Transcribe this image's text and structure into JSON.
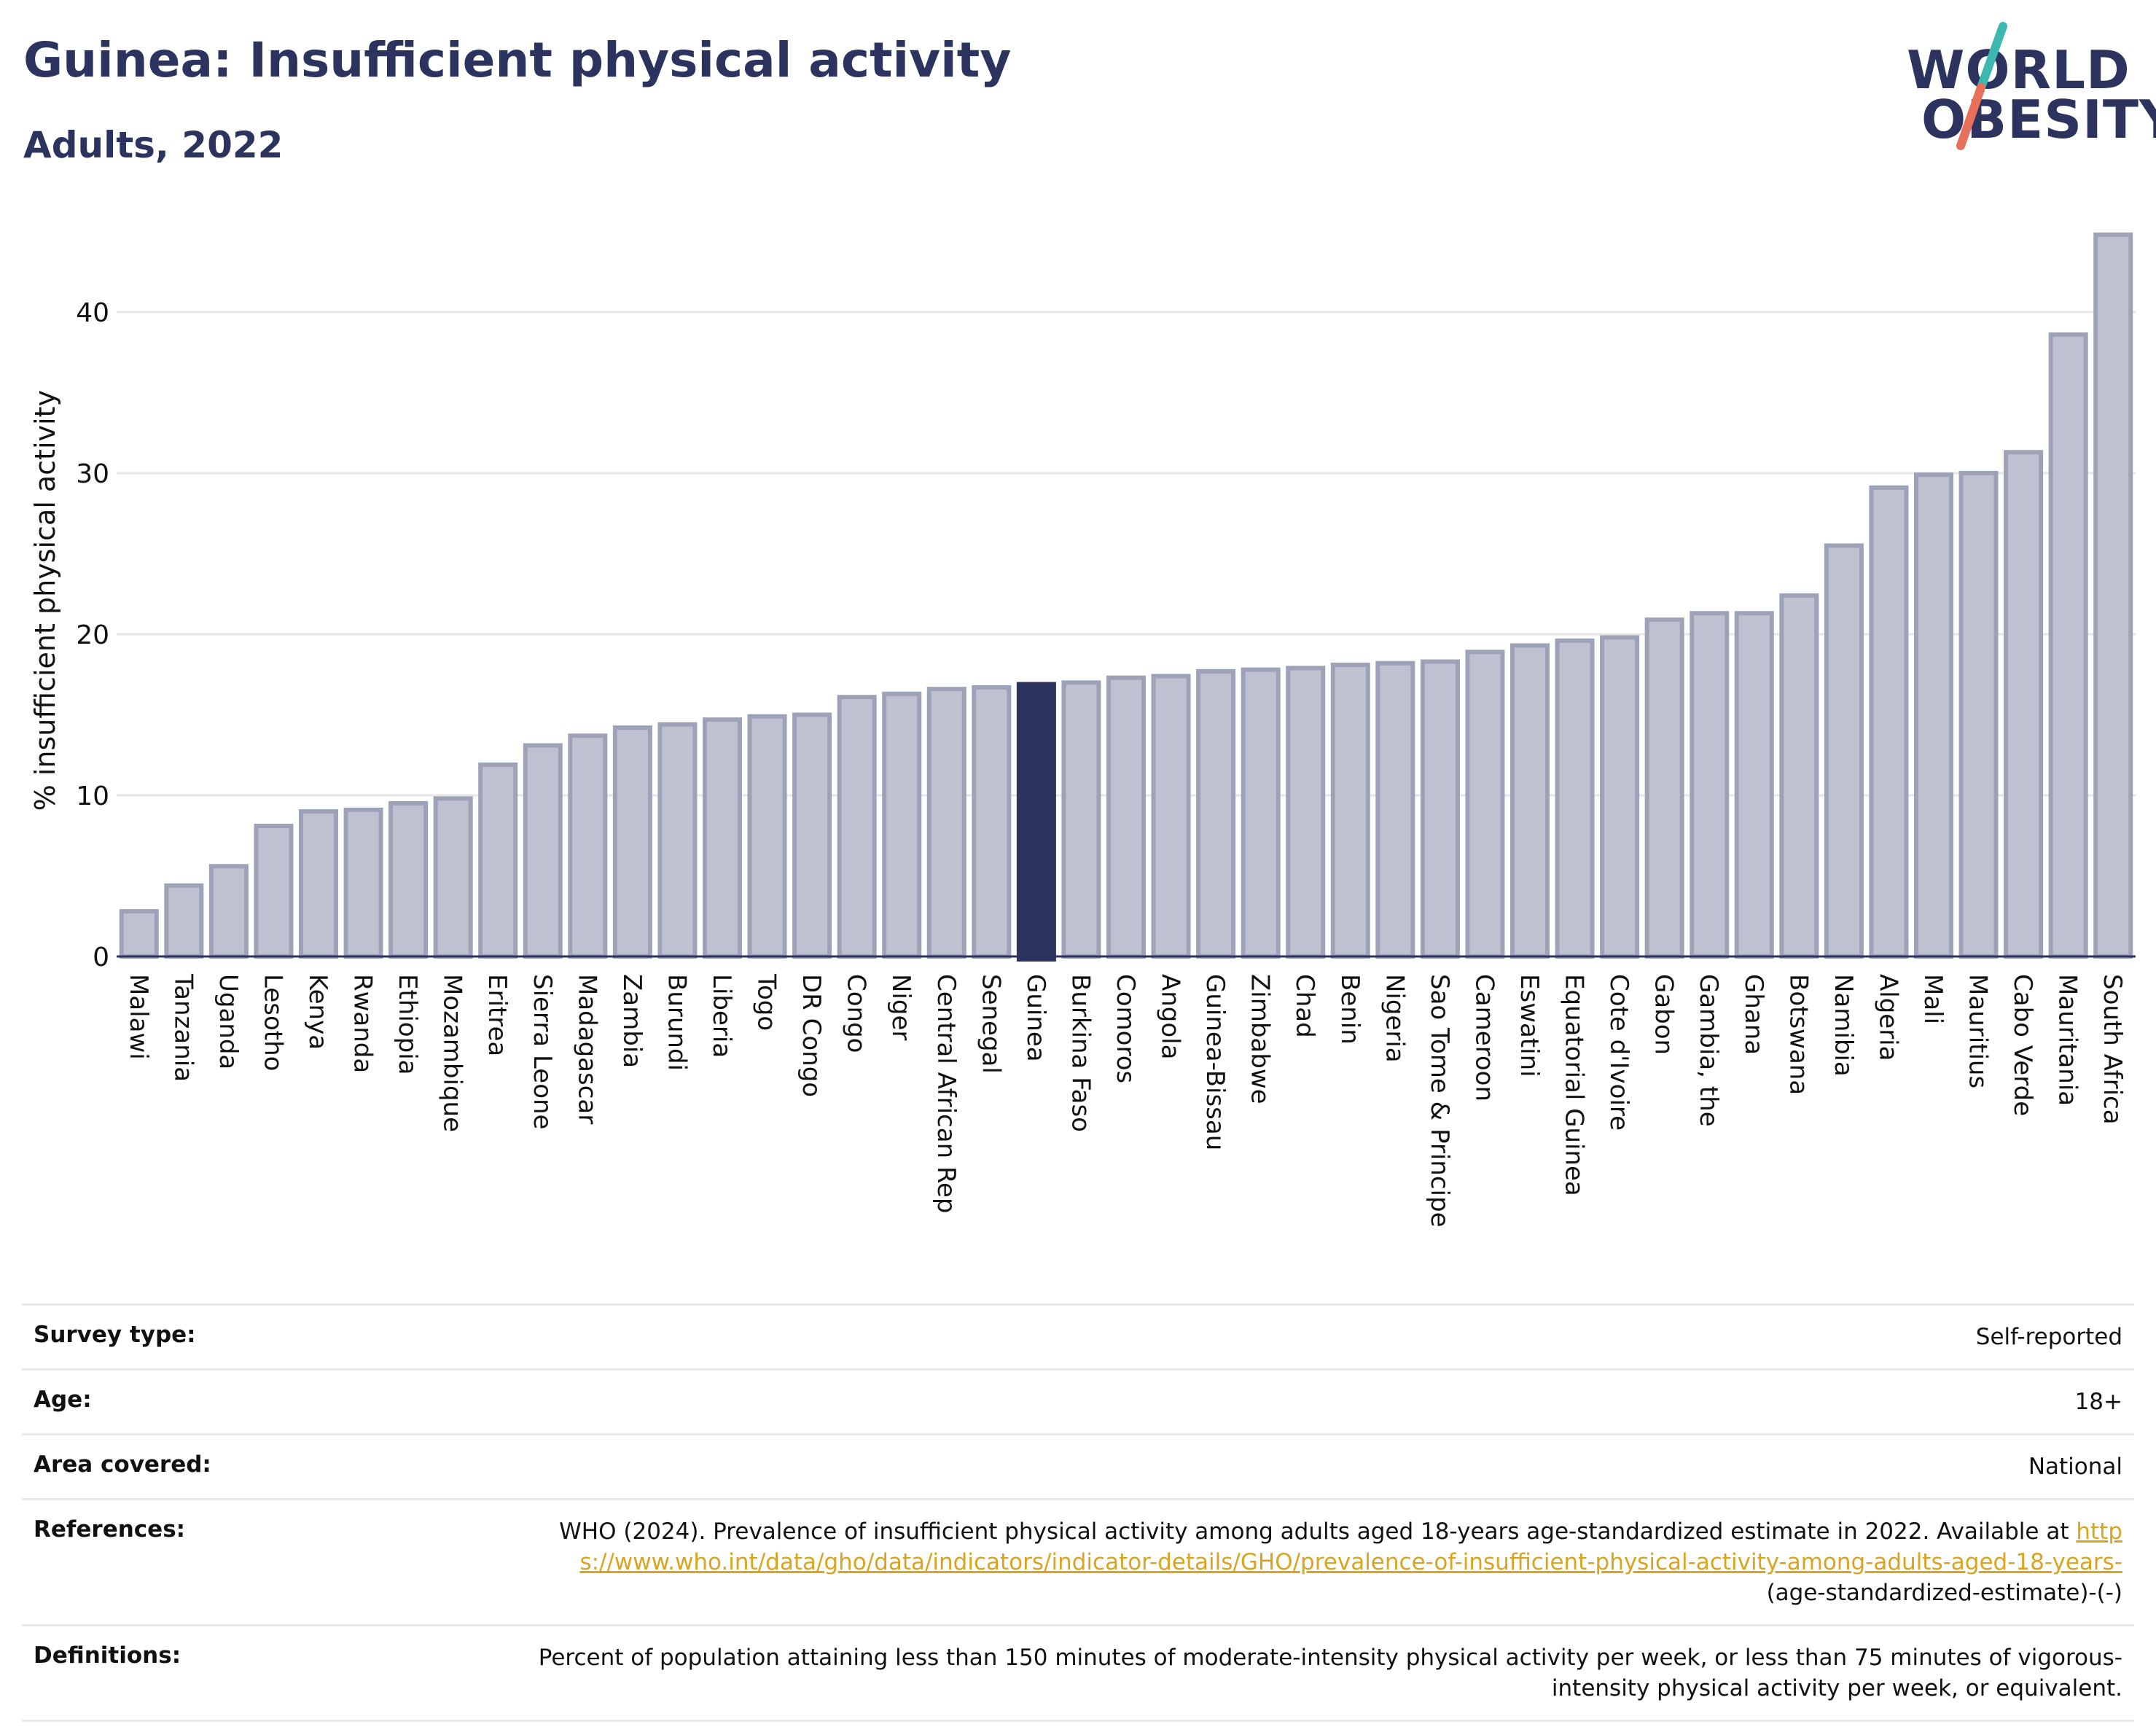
{
  "header": {
    "title": "Guinea: Insufficient physical activity",
    "subtitle": "Adults, 2022"
  },
  "logo": {
    "line1": "WORLD",
    "line2": "OBESITY",
    "accent_teal": "#3cb8b0",
    "accent_coral": "#e8705a"
  },
  "colors": {
    "bar": "#bec2d0",
    "bar_border": "#9da2b9",
    "highlight": "#2b335e",
    "grid": "#e6e6e6",
    "axis": "#2b335e"
  },
  "chart_data": {
    "type": "bar",
    "ylabel": "% insufficient physical activity",
    "ylim": [
      0,
      46
    ],
    "yticks": [
      0,
      10,
      20,
      30,
      40
    ],
    "grid": true,
    "highlight": "Guinea",
    "categories": [
      "Malawi",
      "Tanzania",
      "Uganda",
      "Lesotho",
      "Kenya",
      "Rwanda",
      "Ethiopia",
      "Mozambique",
      "Eritrea",
      "Sierra Leone",
      "Madagascar",
      "Zambia",
      "Burundi",
      "Liberia",
      "Togo",
      "DR Congo",
      "Congo",
      "Niger",
      "Central African Rep",
      "Senegal",
      "Guinea",
      "Burkina Faso",
      "Comoros",
      "Angola",
      "Guinea-Bissau",
      "Zimbabwe",
      "Chad",
      "Benin",
      "Nigeria",
      "Sao Tome & Principe",
      "Cameroon",
      "Eswatini",
      "Equatorial Guinea",
      "Cote d'Ivoire",
      "Gabon",
      "Gambia, the",
      "Ghana",
      "Botswana",
      "Namibia",
      "Algeria",
      "Mali",
      "Mauritius",
      "Cabo Verde",
      "Mauritania",
      "South Africa"
    ],
    "values": [
      2.8,
      4.4,
      5.6,
      8.1,
      9.0,
      9.1,
      9.5,
      9.8,
      11.9,
      13.1,
      13.7,
      14.2,
      14.4,
      14.7,
      14.9,
      15.0,
      16.1,
      16.3,
      16.6,
      16.7,
      16.9,
      17.0,
      17.3,
      17.4,
      17.7,
      17.8,
      17.9,
      18.1,
      18.2,
      18.3,
      18.9,
      19.3,
      19.6,
      19.8,
      20.9,
      21.3,
      21.3,
      22.4,
      25.5,
      29.1,
      29.9,
      30.0,
      31.3,
      38.6,
      44.8
    ]
  },
  "info": {
    "survey_type_label": "Survey type:",
    "survey_type_value": "Self-reported",
    "age_label": "Age:",
    "age_value": "18+",
    "area_label": "Area covered:",
    "area_value": "National",
    "references_label": "References:",
    "references_text": "WHO (2024). Prevalence of insufficient physical activity among adults aged 18-years age-standardized estimate in 2022. Available at",
    "references_link": "https://www.who.int/data/gho/data/indicators/indicator-details/GHO/prevalence-of-insufficient-physical-activity-among-adults-aged-18-years-",
    "references_suffix": "(age-standardized-estimate)-(-)",
    "definitions_label": "Definitions:",
    "definitions_text": "Percent of population attaining less than 150 minutes of moderate-intensity physical activity per week, or less than 75 minutes of vigorous-intensity physical activity per week, or equivalent."
  }
}
